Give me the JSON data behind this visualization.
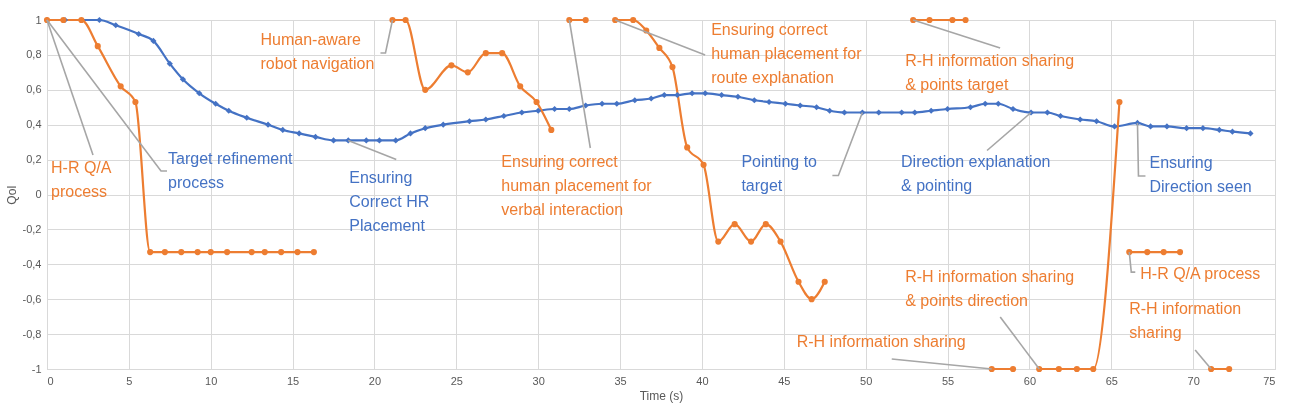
{
  "chart_data": {
    "type": "line",
    "xlabel": "Time (s)",
    "ylabel": "QoI",
    "xlim": [
      0,
      75
    ],
    "xticks": [
      0,
      5,
      10,
      15,
      20,
      25,
      30,
      35,
      40,
      45,
      50,
      55,
      60,
      65,
      70,
      75
    ],
    "ylim": [
      -1,
      1
    ],
    "yticks": [
      -1,
      {
        "value": -0.8,
        "label": "-0,8"
      },
      {
        "value": -0.6,
        "label": "-0,6"
      },
      {
        "value": -0.4,
        "label": "-0,4"
      },
      {
        "value": -0.2,
        "label": "-0,2"
      },
      0,
      {
        "value": 0.2,
        "label": "0,2"
      },
      {
        "value": 0.4,
        "label": "0,4"
      },
      {
        "value": 0.6,
        "label": "0,6"
      },
      {
        "value": 0.8,
        "label": "0,8"
      },
      1
    ],
    "grid": true,
    "series": [
      {
        "color": "#4472c4",
        "marker": "diamond",
        "x": [
          0,
          1.1,
          3.2,
          4.2,
          5.6,
          6.5,
          7.5,
          8.3,
          9.3,
          10.3,
          11.1,
          12.2,
          13.5,
          14.4,
          15.4,
          16.4,
          17.5,
          18.4,
          19.5,
          20.3,
          21.3,
          22.2,
          23.1,
          24.2,
          25.8,
          26.8,
          27.9,
          29.0,
          30.0,
          31.0,
          31.9,
          32.9,
          33.9,
          34.8,
          35.9,
          36.9,
          37.7,
          38.5,
          39.4,
          40.2,
          41.2,
          42.2,
          43.2,
          44.1,
          45.1,
          46.0,
          47.0,
          47.8,
          48.7,
          49.8,
          50.8,
          52.2,
          53.0,
          54.0,
          55.0,
          56.4,
          57.3,
          58.1,
          59.0,
          60.1,
          61.1,
          61.9,
          63.1,
          64.1,
          65.2,
          66.6,
          67.4,
          68.4,
          69.6,
          70.6,
          71.6,
          72.4,
          73.5
        ],
        "values": [
          1,
          1,
          1,
          0.97,
          0.92,
          0.88,
          0.75,
          0.66,
          0.58,
          0.52,
          0.48,
          0.44,
          0.4,
          0.37,
          0.35,
          0.33,
          0.31,
          0.31,
          0.31,
          0.31,
          0.31,
          0.35,
          0.38,
          0.4,
          0.42,
          0.43,
          0.45,
          0.47,
          0.48,
          0.49,
          0.49,
          0.51,
          0.52,
          0.52,
          0.54,
          0.55,
          0.57,
          0.57,
          0.58,
          0.58,
          0.57,
          0.56,
          0.54,
          0.53,
          0.52,
          0.51,
          0.5,
          0.48,
          0.47,
          0.47,
          0.47,
          0.47,
          0.47,
          0.48,
          0.49,
          0.5,
          0.52,
          0.52,
          0.49,
          0.47,
          0.47,
          0.45,
          0.43,
          0.42,
          0.39,
          0.41,
          0.39,
          0.39,
          0.38,
          0.38,
          0.37,
          0.36,
          0.35
        ]
      },
      {
        "color": "#ed7d31",
        "marker": "circle",
        "x": [
          0,
          1.0,
          2.1,
          3.1,
          4.5,
          5.4,
          6.3,
          7.2,
          8.2,
          9.2,
          10.0,
          11.0,
          12.5,
          13.3,
          14.3,
          15.3,
          16.3
        ],
        "values": [
          1,
          1,
          1,
          0.85,
          0.62,
          0.53,
          -0.33,
          -0.33,
          -0.33,
          -0.33,
          -0.33,
          -0.33,
          -0.33,
          -0.33,
          -0.33,
          -0.33,
          -0.33
        ]
      },
      {
        "color": "#ed7d31",
        "marker": "circle",
        "x": [
          21.1,
          21.9,
          23.1,
          24.7,
          25.7,
          26.8,
          27.8,
          28.9,
          29.9,
          30.8
        ],
        "values": [
          1,
          1,
          0.6,
          0.74,
          0.7,
          0.81,
          0.81,
          0.62,
          0.53,
          0.37
        ]
      },
      {
        "color": "#ed7d31",
        "marker": "circle",
        "x": [
          31.9,
          32.9
        ],
        "values": [
          1,
          1
        ]
      },
      {
        "color": "#ed7d31",
        "marker": "circle",
        "x": [
          34.7,
          35.8,
          36.6,
          37.4,
          38.2,
          39.1,
          40.1,
          41.0,
          42.0,
          43.0,
          43.9,
          44.8,
          45.9,
          46.7,
          47.5
        ],
        "values": [
          1,
          1,
          0.94,
          0.84,
          0.73,
          0.27,
          0.17,
          -0.27,
          -0.17,
          -0.27,
          -0.17,
          -0.27,
          -0.5,
          -0.6,
          -0.5
        ]
      },
      {
        "color": "#ed7d31",
        "marker": "circle",
        "x": [
          52.9,
          53.9,
          55.3,
          56.1
        ],
        "values": [
          1,
          1,
          1,
          1
        ]
      },
      {
        "color": "#ed7d31",
        "marker": "circle",
        "x": [
          57.7,
          59.0
        ],
        "values": [
          -1,
          -1
        ]
      },
      {
        "color": "#ed7d31",
        "marker": "circle",
        "x": [
          60.6,
          61.8,
          62.9,
          63.9,
          65.5
        ],
        "values": [
          -1,
          -1,
          -1,
          -1,
          0.53
        ]
      },
      {
        "color": "#ed7d31",
        "marker": "circle",
        "x": [
          66.1,
          67.2,
          68.2,
          69.2
        ],
        "values": [
          -0.33,
          -0.33,
          -0.33,
          -0.33
        ]
      },
      {
        "color": "#ed7d31",
        "marker": "circle",
        "x": [
          71.1,
          72.2
        ],
        "values": [
          -1,
          -1
        ]
      }
    ],
    "annotations": [
      {
        "text": "H-R Q/A\nprocess",
        "x": 0,
        "y": 1
      },
      {
        "text": "Target refinement\nprocess",
        "x": 0,
        "y": 1
      },
      {
        "text": "Ensuring\nCorrect HR\nPlacement",
        "x": 18.4,
        "y": 0.31
      },
      {
        "text": "Human-aware\nrobot navigation",
        "x": 21.1,
        "y": 1
      },
      {
        "text": "Ensuring correct\nhuman placement for\nverbal interaction",
        "x": 31.9,
        "y": 1
      },
      {
        "text": "Ensuring correct\nhuman placement for\nroute explanation",
        "x": 34.7,
        "y": 1
      },
      {
        "text": "Pointing to\ntarget",
        "x": 49.8,
        "y": 0.47
      },
      {
        "text": "R-H information sharing\n& points target",
        "x": 52.9,
        "y": 1
      },
      {
        "text": "Direction explanation\n& pointing",
        "x": 60.1,
        "y": 0.47
      },
      {
        "text": "Ensuring\nDirection seen",
        "x": 66.6,
        "y": 0.41
      },
      {
        "text": "H-R Q/A process",
        "x": 66.1,
        "y": -0.33
      },
      {
        "text": "R-H information sharing\n& points direction",
        "x": 60.6,
        "y": -1
      },
      {
        "text": "R-H information sharing",
        "x": 57.7,
        "y": -1
      },
      {
        "text": "R-H information\nsharing",
        "x": 71.1,
        "y": -1
      }
    ]
  }
}
